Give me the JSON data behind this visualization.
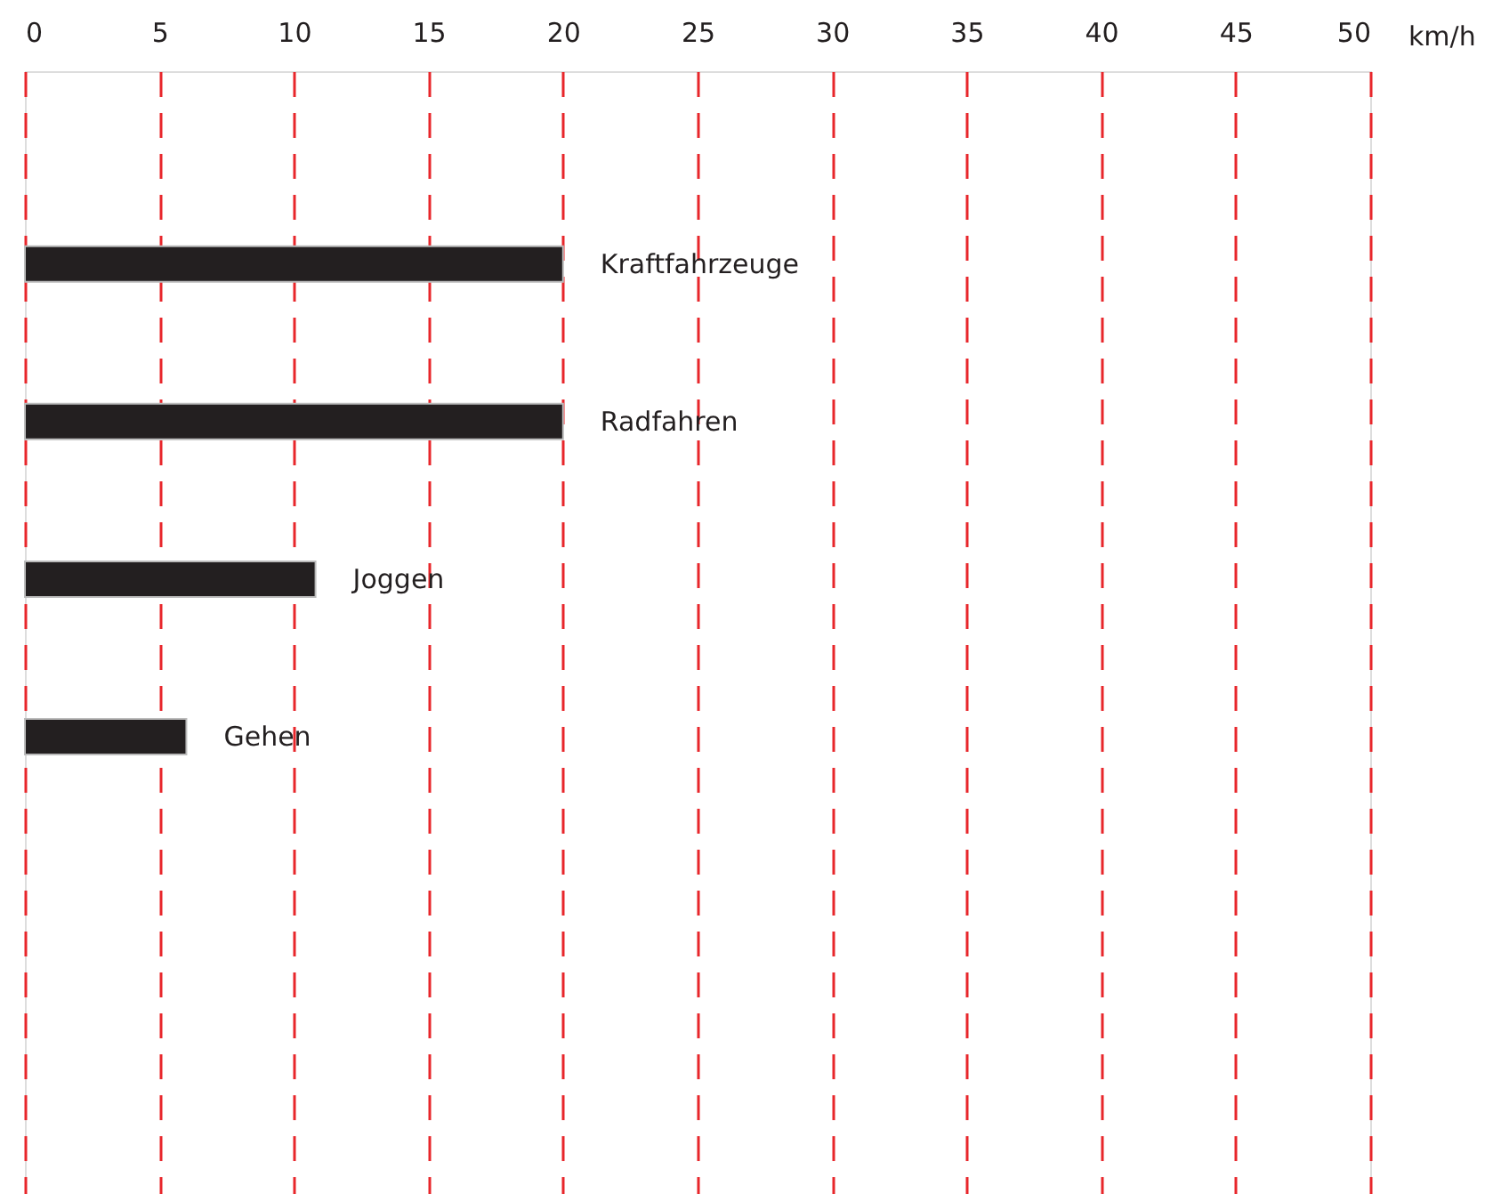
{
  "chart_data": {
    "type": "bar",
    "orientation": "horizontal",
    "xlabel": "km/h",
    "categories": [
      "Kraftfahrzeuge",
      "Radfahren",
      "Joggen",
      "Gehen"
    ],
    "values": [
      20,
      20,
      10.8,
      6
    ],
    "color": "#231f20",
    "xlim": [
      0,
      50
    ],
    "xticks": [
      0,
      5,
      10,
      15,
      20,
      25,
      30,
      35,
      40,
      45,
      50
    ],
    "grid": "x"
  }
}
